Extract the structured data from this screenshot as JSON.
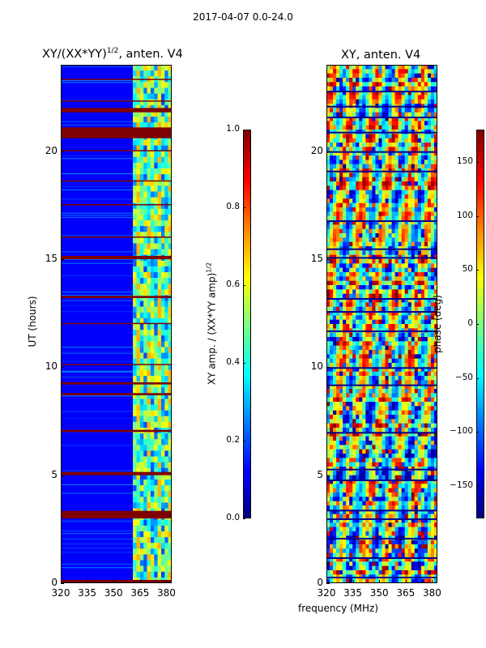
{
  "figure": {
    "suptitle": "2017-04-07 0.0-24.0"
  },
  "colors": {
    "jet": [
      "#00007f",
      "#0000ff",
      "#007fff",
      "#00ffff",
      "#7fff7f",
      "#ffff00",
      "#ff7f00",
      "#ff0000",
      "#7f0000"
    ],
    "mask_stripe": "#7f0000",
    "frame": "#000000"
  },
  "chart_data": [
    {
      "type": "heatmap",
      "title_prefix": "XY/(XX*YY)",
      "title_exp": "1/2",
      "title_suffix": ", anten. V4",
      "xlabel": "",
      "ylabel": "UT (hours)",
      "xlim": [
        320,
        383
      ],
      "ylim": [
        0,
        24
      ],
      "xticks": [
        320,
        335,
        350,
        365,
        380
      ],
      "yticks": [
        0,
        5,
        10,
        15,
        20
      ],
      "colorbar": {
        "label_prefix": "XY amp. / (XX*YY amp)",
        "label_exp": "1/2",
        "range": [
          0.0,
          1.0
        ],
        "ticks": [
          "0.0",
          "0.2",
          "0.4",
          "0.6",
          "0.8",
          "1.0"
        ],
        "tick_values": [
          0.0,
          0.2,
          0.4,
          0.6,
          0.8,
          1.0
        ]
      },
      "features": {
        "low_band_freq": [
          320,
          361
        ],
        "low_band_level": 0.05,
        "active_band_freq": [
          361,
          383
        ],
        "active_band_level_range": [
          0.1,
          0.7
        ],
        "masked_hours": [
          [
            0.0,
            0.15
          ],
          [
            3.0,
            3.35
          ],
          [
            5.0,
            5.15
          ],
          [
            7.0,
            7.1
          ],
          [
            8.7,
            8.8
          ],
          [
            9.2,
            9.3
          ],
          [
            10.1,
            10.15
          ],
          [
            12.0,
            12.05
          ],
          [
            13.2,
            13.3
          ],
          [
            15.0,
            15.15
          ],
          [
            16.0,
            16.05
          ],
          [
            17.5,
            17.55
          ],
          [
            18.6,
            18.65
          ],
          [
            20.0,
            20.05
          ],
          [
            20.6,
            21.1
          ],
          [
            21.8,
            22.0
          ],
          [
            22.3,
            22.35
          ],
          [
            23.3,
            23.35
          ]
        ]
      }
    },
    {
      "type": "heatmap",
      "title_prefix": "XY, anten. V4",
      "xlabel": "frequency (MHz)",
      "ylabel": "",
      "xlim": [
        320,
        383
      ],
      "ylim": [
        0,
        24
      ],
      "xticks": [
        320,
        335,
        350,
        365,
        380
      ],
      "yticks": [
        0,
        5,
        10,
        15,
        20
      ],
      "colorbar": {
        "label": "phase (deg)",
        "range": [
          -180,
          180
        ],
        "ticks": [
          "150",
          "100",
          "50",
          "0",
          "−50",
          "−100",
          "−150"
        ],
        "tick_values": [
          150,
          100,
          50,
          0,
          -50,
          -100,
          -150
        ]
      },
      "features": {
        "phase_range": [
          -180,
          180
        ],
        "dark_separator_hours": [
          0.3,
          1.2,
          2.1,
          3.0,
          3.4,
          4.8,
          5.3,
          7.0,
          9.2,
          10.0,
          11.7,
          12.6,
          13.2,
          15.1,
          15.5,
          16.8,
          19.1,
          20.0,
          20.9,
          21.6,
          22.1,
          22.8
        ]
      }
    }
  ]
}
